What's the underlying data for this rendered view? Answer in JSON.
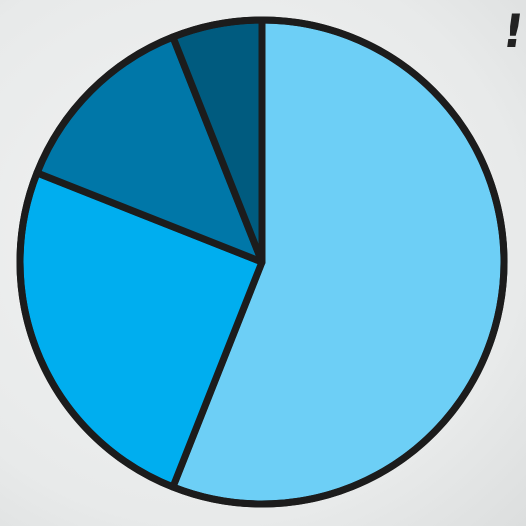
{
  "chart_data": {
    "type": "pie",
    "title": "",
    "start_angle_deg": 0,
    "direction": "clockwise",
    "slices": [
      {
        "value": 56,
        "color": "#6dcff6"
      },
      {
        "value": 25,
        "color": "#00aeef"
      },
      {
        "value": 13,
        "color": "#0077a8"
      },
      {
        "value": 6,
        "color": "#005b7f"
      }
    ],
    "edge_color": "#1c1c1c",
    "legend": "none",
    "labels_shown": false
  },
  "annotation": {
    "text": "!"
  }
}
